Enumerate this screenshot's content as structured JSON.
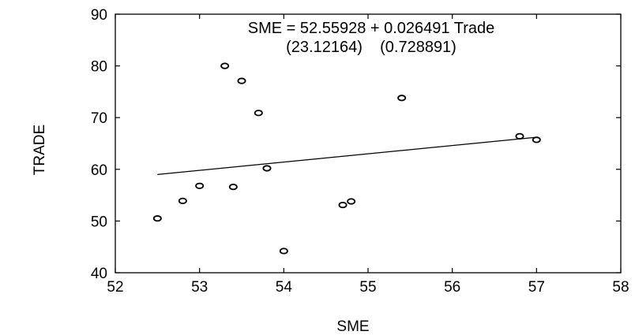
{
  "chart_data": {
    "type": "scatter",
    "title": "",
    "xlabel": "SME",
    "ylabel": "TRADE",
    "xlim": [
      52,
      58
    ],
    "ylim": [
      40,
      90
    ],
    "xticks": [
      52,
      53,
      54,
      55,
      56,
      57,
      58
    ],
    "yticks": [
      40,
      50,
      60,
      70,
      80,
      90
    ],
    "grid": false,
    "legend": "none",
    "annotation": {
      "equation": "SME = 52.55928 + 0.026491 Trade",
      "std_errors": "(23.12164)    (0.728891)"
    },
    "points": [
      {
        "x": 52.5,
        "y": 50.5
      },
      {
        "x": 52.8,
        "y": 53.9
      },
      {
        "x": 53.0,
        "y": 56.8
      },
      {
        "x": 53.3,
        "y": 80.0
      },
      {
        "x": 53.4,
        "y": 56.6
      },
      {
        "x": 53.5,
        "y": 77.1
      },
      {
        "x": 53.7,
        "y": 70.9
      },
      {
        "x": 53.8,
        "y": 60.2
      },
      {
        "x": 54.0,
        "y": 44.2
      },
      {
        "x": 54.7,
        "y": 53.1
      },
      {
        "x": 54.8,
        "y": 53.8
      },
      {
        "x": 55.4,
        "y": 73.8
      },
      {
        "x": 56.8,
        "y": 66.4
      },
      {
        "x": 57.0,
        "y": 65.7
      }
    ],
    "fit_line": {
      "x": [
        52.5,
        57.0
      ],
      "y": [
        59.0,
        66.2
      ]
    },
    "colors": {
      "marks": "#000000",
      "background": "#ffffff"
    }
  }
}
